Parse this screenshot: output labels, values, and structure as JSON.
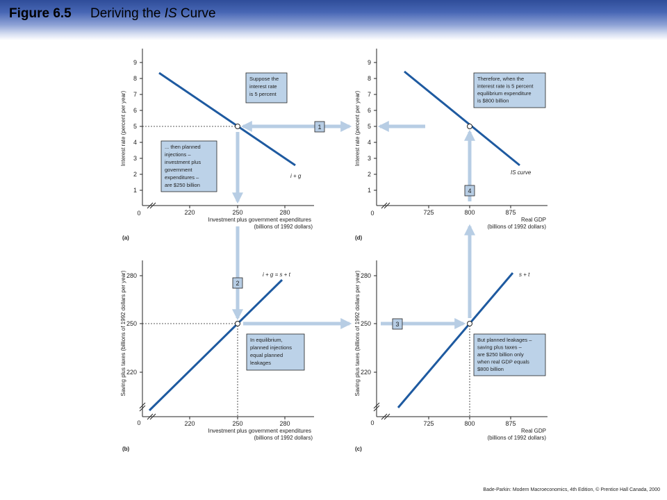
{
  "header": {
    "figure_number": "Figure 6.5",
    "title_prefix": "Deriving the ",
    "title_italic": "IS",
    "title_suffix": " Curve"
  },
  "footer": {
    "text": "Bade-Parkin: Modern Macroeconomics, 4th Edition, © Prentice Hall Canada, 2000"
  },
  "colors": {
    "curve": "#1e5aa0",
    "arrow": "#b7cde4",
    "note_box": "#bcd2e8",
    "step_box": "#b7cde4",
    "axis": "#222222"
  },
  "panels": {
    "a": {
      "label": "(a)",
      "y_axis_label": "Interest rate (percent per year)",
      "x_axis_label_1": "Investment plus government expenditures",
      "x_axis_label_2": "(billions of 1992 dollars)",
      "y_ticks": [
        "1",
        "2",
        "3",
        "4",
        "5",
        "6",
        "7",
        "8",
        "9"
      ],
      "x_ticks": [
        "220",
        "250",
        "280"
      ],
      "origin": "0",
      "curve_label": "i + g",
      "note_lines": [
        "... then planned",
        "injections –",
        "investment plus",
        "government",
        "expenditures –",
        "are $250 billion"
      ],
      "question_lines": [
        "Suppose the",
        "interest rate",
        "is 5 percent"
      ]
    },
    "b": {
      "label": "(b)",
      "y_axis_label": "Saving plus taxes (billions of 1992 dollars per year)",
      "x_axis_label_1": "Investment plus government expenditures",
      "x_axis_label_2": "(billions of 1992 dollars)",
      "y_ticks": [
        "220",
        "250",
        "280"
      ],
      "x_ticks": [
        "220",
        "250",
        "280"
      ],
      "origin": "0",
      "curve_label": "i + g = s + t",
      "note_lines": [
        "In equilibrium,",
        "planned injections",
        "equal planned",
        "leakages"
      ]
    },
    "c": {
      "label": "(c)",
      "y_axis_label": "Saving plus taxes (billions of 1992 dollars per year)",
      "x_axis_label_1": "Real GDP",
      "x_axis_label_2": "(billions of 1992 dollars)",
      "y_ticks": [
        "220",
        "250",
        "280"
      ],
      "x_ticks": [
        "725",
        "800",
        "875"
      ],
      "origin": "0",
      "curve_label": "s + t",
      "note_lines": [
        "But planned leakages –",
        "saving plus taxes –",
        "are $250 billion only",
        "when real GDP equals",
        "$800 billion"
      ]
    },
    "d": {
      "label": "(d)",
      "y_axis_label": "Interest rate (percent per year)",
      "x_axis_label_1": "Real GDP",
      "x_axis_label_2": "(billions of 1992 dollars)",
      "y_ticks": [
        "1",
        "2",
        "3",
        "4",
        "5",
        "6",
        "7",
        "8",
        "9"
      ],
      "x_ticks": [
        "725",
        "800",
        "875"
      ],
      "origin": "0",
      "curve_label": "IS curve",
      "note_lines": [
        "Therefore, when the",
        "interest rate is 5 percent",
        "equilibrium expenditure",
        "is $800 billion"
      ]
    }
  },
  "steps": [
    "1",
    "2",
    "3",
    "4"
  ]
}
